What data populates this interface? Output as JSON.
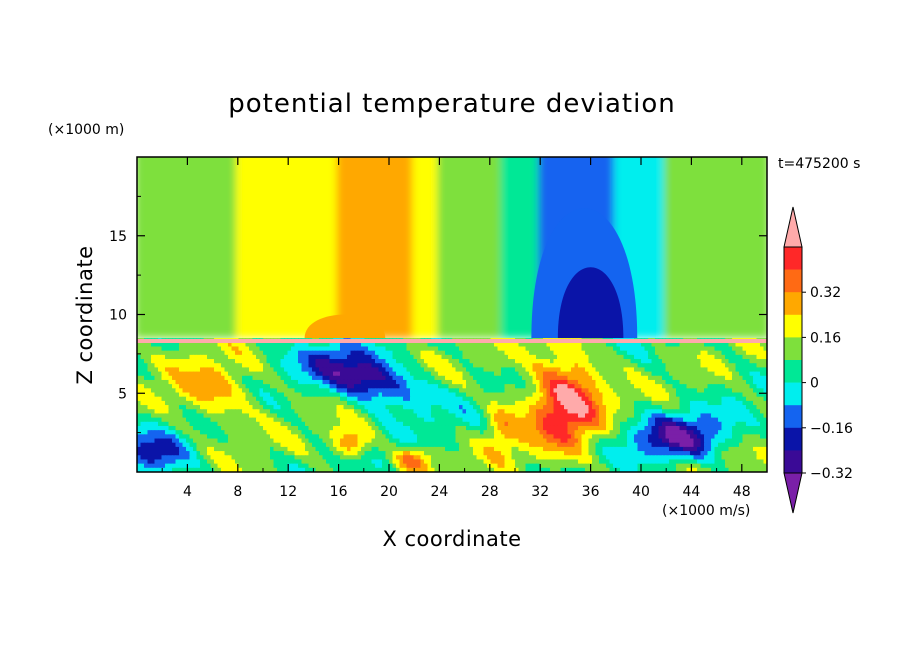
{
  "chart_data": {
    "type": "heatmap",
    "title": "potential temperature deviation",
    "xlabel": "X coordinate",
    "ylabel": "Z coordinate",
    "x_unit": "(×1000 m/s)",
    "y_unit": "(×1000 m)",
    "time_label": "t=475200 s",
    "xlim": [
      0,
      50
    ],
    "ylim": [
      0,
      20
    ],
    "x_ticks": [
      4,
      8,
      12,
      16,
      20,
      24,
      28,
      32,
      36,
      40,
      44,
      48
    ],
    "y_ticks": [
      5,
      10,
      15
    ],
    "colorbar": {
      "levels": [
        -0.48,
        -0.4,
        -0.32,
        -0.24,
        -0.16,
        -0.08,
        0,
        0.08,
        0.16,
        0.24,
        0.32,
        0.4
      ],
      "tick_labels": [
        "-0.32",
        "-0.16",
        "0",
        "0.16",
        "0.32"
      ],
      "tick_values": [
        -0.32,
        -0.16,
        0,
        0.16,
        0.32
      ],
      "colors": [
        "#7a1fa8",
        "#3a0a96",
        "#0a14a8",
        "#1464f0",
        "#00eeee",
        "#00e896",
        "#7ee03c",
        "#ffff00",
        "#ffa800",
        "#ff6a14",
        "#ff2828",
        "#ffaaaa"
      ],
      "extend": "both"
    },
    "upper_layer_bands": [
      {
        "x": [
          0,
          8
        ],
        "value": 0.04
      },
      {
        "x": [
          8,
          12
        ],
        "value": 0.08
      },
      {
        "x": [
          12,
          16
        ],
        "value": 0.12
      },
      {
        "x": [
          16,
          22
        ],
        "value": 0.18
      },
      {
        "x": [
          22,
          24
        ],
        "value": 0.12
      },
      {
        "x": [
          24,
          29
        ],
        "value": 0.06
      },
      {
        "x": [
          29,
          32
        ],
        "value": -0.04
      },
      {
        "x": [
          32,
          38
        ],
        "value": -0.2
      },
      {
        "x": [
          38,
          42
        ],
        "value": -0.1
      },
      {
        "x": [
          42,
          50
        ],
        "value": 0.02
      }
    ],
    "interface_height": 8.5
  }
}
